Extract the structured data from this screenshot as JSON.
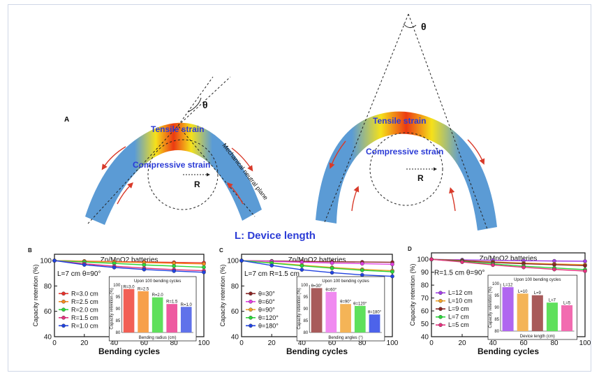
{
  "figure": {
    "panel_A": {
      "label": "A",
      "theta": "θ",
      "tensile": "Tensile strain",
      "compressive": "Compressive strain",
      "neutral": "Mechanical neutral plane",
      "radius": "R",
      "device_length": "L: Device length"
    },
    "gradient_colors": {
      "outer": "#5b9bd5",
      "mid": "#f5e11a",
      "hot": "#ec3a12"
    }
  },
  "chart_data": [
    {
      "panel": "B",
      "type": "line",
      "title": "Zn/MnO2 batteries",
      "xlabel": "Bending cycles",
      "ylabel": "Capacity retention (%)",
      "condition": "L=7 cm θ=90°",
      "x": [
        0,
        20,
        40,
        60,
        80,
        100
      ],
      "xlim": [
        0,
        100
      ],
      "xticks": [
        "0",
        "20",
        "40",
        "60",
        "80",
        "100"
      ],
      "ylim": [
        40,
        105
      ],
      "yticks": [
        "40",
        "60",
        "80",
        "100"
      ],
      "series": [
        {
          "name": "R=3.0 cm",
          "color": "#e8312a",
          "values": [
            100,
            99.6,
            99.2,
            98.9,
            98.6,
            98.3
          ]
        },
        {
          "name": "R=2.5 cm",
          "color": "#f58a1f",
          "values": [
            100,
            99.5,
            98.9,
            98.4,
            97.9,
            97.4
          ]
        },
        {
          "name": "R=2.0 cm",
          "color": "#2bd63a",
          "values": [
            100,
            98.9,
            97.8,
            96.6,
            95.7,
            94.8
          ]
        },
        {
          "name": "R=1.5 cm",
          "color": "#e4317d",
          "values": [
            100,
            97.5,
            95.6,
            94.1,
            92.9,
            92.0
          ]
        },
        {
          "name": "R=1.0 cm",
          "color": "#2042e0",
          "values": [
            100,
            96.7,
            94.6,
            93.0,
            91.8,
            90.8
          ]
        }
      ],
      "inset": {
        "title": "Upon 100 bending cycles",
        "xlabel": "Bending radius (cm)",
        "ylabel": "Capacity retention (%)",
        "ylim": [
          80,
          100
        ],
        "yticks": [
          "80",
          "85",
          "90",
          "95",
          "100"
        ],
        "bars": [
          {
            "label": "R=3.0",
            "value": 98.3,
            "color": "#f25f55"
          },
          {
            "label": "R=2.5",
            "value": 97.4,
            "color": "#f7a04a"
          },
          {
            "label": "R=2.0",
            "value": 94.8,
            "color": "#5fe05c"
          },
          {
            "label": "R=1.5",
            "value": 92.0,
            "color": "#ee5aa0"
          },
          {
            "label": "R=1.0",
            "value": 90.8,
            "color": "#6072ea"
          }
        ]
      }
    },
    {
      "panel": "C",
      "type": "line",
      "title": "Zn/MnO2 batteries",
      "xlabel": "Bending cycles",
      "ylabel": "Capacity retention (%)",
      "condition": "L=7 cm R=1.5 cm",
      "x": [
        0,
        20,
        40,
        60,
        80,
        100
      ],
      "xlim": [
        0,
        100
      ],
      "xticks": [
        "0",
        "20",
        "40",
        "60",
        "80",
        "100"
      ],
      "ylim": [
        40,
        105
      ],
      "yticks": [
        "40",
        "60",
        "80",
        "100"
      ],
      "series": [
        {
          "name": "θ=30°",
          "color": "#8a2424",
          "values": [
            100,
            99.7,
            99.4,
            99.1,
            98.9,
            98.7
          ]
        },
        {
          "name": "θ=60°",
          "color": "#e13fe0",
          "values": [
            100,
            99.4,
            98.7,
            98.1,
            97.6,
            97.1
          ]
        },
        {
          "name": "θ=90°",
          "color": "#f0a22a",
          "values": [
            100,
            98.3,
            96.4,
            94.6,
            93.1,
            92.0
          ]
        },
        {
          "name": "θ=120°",
          "color": "#2bd63a",
          "values": [
            100,
            98.0,
            95.9,
            94.0,
            92.4,
            91.2
          ]
        },
        {
          "name": "θ=180°",
          "color": "#2042e0",
          "values": [
            100,
            96.2,
            92.8,
            90.5,
            88.7,
            87.6
          ]
        }
      ],
      "inset": {
        "title": "Upon 100 bending cycles",
        "xlabel": "Bending angles (°)",
        "ylabel": "Capacity retention (%)",
        "ylim": [
          80,
          100
        ],
        "yticks": [
          "80",
          "85",
          "90",
          "95",
          "100"
        ],
        "bars": [
          {
            "label": "θ=30°",
            "value": 98.7,
            "color": "#a85a5a"
          },
          {
            "label": "θ=60°",
            "value": 97.1,
            "color": "#f08af0"
          },
          {
            "label": "θ=90°",
            "value": 92.0,
            "color": "#f4b457"
          },
          {
            "label": "θ=120°",
            "value": 91.2,
            "color": "#5fe05c"
          },
          {
            "label": "θ=180°",
            "value": 87.6,
            "color": "#4d63ea"
          }
        ]
      }
    },
    {
      "panel": "D",
      "type": "line",
      "title": "Zn/MnO2 batteries",
      "xlabel": "Bending cycles",
      "ylabel": "Capacity retention (%)",
      "condition": "R=1.5 cm θ=90°",
      "x": [
        0,
        20,
        40,
        60,
        80,
        100
      ],
      "xlim": [
        0,
        100
      ],
      "xticks": [
        "0",
        "20",
        "40",
        "60",
        "80",
        "100"
      ],
      "ylim": [
        40,
        105
      ],
      "yticks": [
        "40",
        "50",
        "60",
        "70",
        "80",
        "90",
        "100"
      ],
      "series": [
        {
          "name": "L=12 cm",
          "color": "#a23fe6",
          "values": [
            100,
            99.6,
            99.2,
            98.9,
            98.7,
            98.5
          ]
        },
        {
          "name": "L=10 cm",
          "color": "#f0a22a",
          "values": [
            100,
            99.1,
            98.0,
            97.1,
            96.4,
            95.8
          ]
        },
        {
          "name": "L=9 cm",
          "color": "#8a2424",
          "values": [
            100,
            98.9,
            97.6,
            96.6,
            95.8,
            95.1
          ]
        },
        {
          "name": "L=7 cm",
          "color": "#2bd63a",
          "values": [
            100,
            98.3,
            96.4,
            94.7,
            93.3,
            92.0
          ]
        },
        {
          "name": "L=5 cm",
          "color": "#e4317d",
          "values": [
            100,
            97.9,
            95.6,
            93.8,
            92.2,
            90.9
          ]
        }
      ],
      "inset": {
        "title": "Upon 100 bending cycles",
        "xlabel": "Device length (cm)",
        "ylabel": "Capacity retention (%)",
        "ylim": [
          80,
          100
        ],
        "yticks": [
          "80",
          "85",
          "90",
          "95",
          "100"
        ],
        "bars": [
          {
            "label": "L=12",
            "value": 98.5,
            "color": "#b066f0"
          },
          {
            "label": "L=10",
            "value": 95.8,
            "color": "#f4b457"
          },
          {
            "label": "L=9",
            "value": 95.1,
            "color": "#a85a5a"
          },
          {
            "label": "L=7",
            "value": 92.0,
            "color": "#5fe05c"
          },
          {
            "label": "L=5",
            "value": 90.9,
            "color": "#f26bb0"
          }
        ]
      }
    }
  ]
}
